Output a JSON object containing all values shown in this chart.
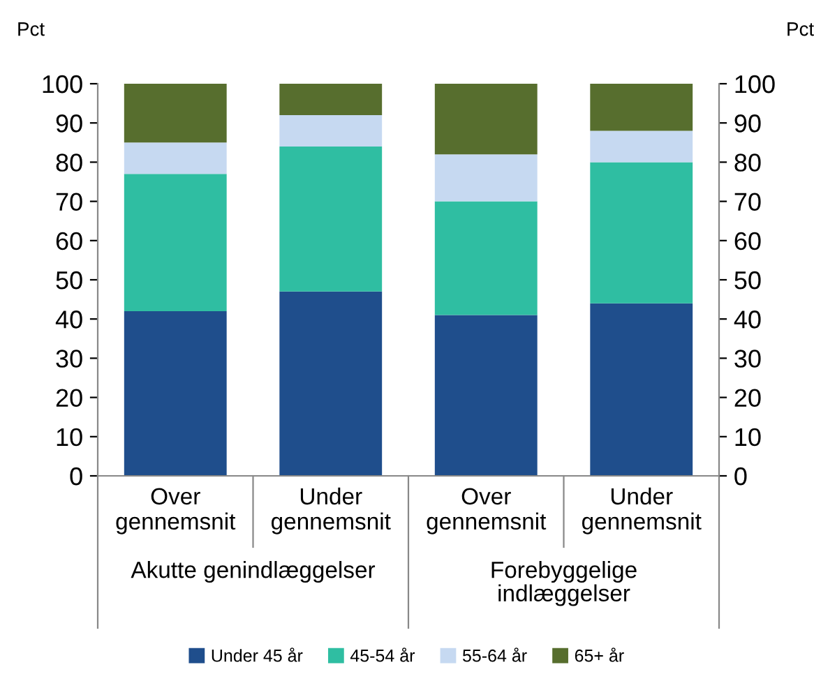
{
  "chart_data": {
    "type": "bar",
    "stacked": true,
    "categories": [
      "Over\ngennemsnit",
      "Under\ngennemsnit",
      "Over\ngennemsnit",
      "Under\ngennemsnit"
    ],
    "series": [
      {
        "name": "Under 45 år",
        "color": "#1f4e8c",
        "values": [
          42,
          47,
          41,
          44
        ]
      },
      {
        "name": "45-54 år",
        "color": "#2fbea2",
        "values": [
          35,
          37,
          29,
          36
        ]
      },
      {
        "name": "55-64 år",
        "color": "#c6d9f1",
        "values": [
          8,
          8,
          12,
          8
        ]
      },
      {
        "name": "65+ år",
        "color": "#576e2e",
        "values": [
          15,
          8,
          18,
          12
        ]
      }
    ],
    "ylabel": "Pct",
    "y2label": "Pct",
    "ylim": [
      0,
      100
    ],
    "yticks": [
      0,
      10,
      20,
      30,
      40,
      50,
      60,
      70,
      80,
      90,
      100
    ],
    "y2lim": [
      0,
      100
    ],
    "y2ticks": [
      0,
      10,
      20,
      30,
      40,
      50,
      60,
      70,
      80,
      90,
      100
    ],
    "annotations": [
      "Akutte genindlæggelser",
      "Forebyggelige\nindlæggelser"
    ],
    "grid": false,
    "legend": "bottom"
  }
}
